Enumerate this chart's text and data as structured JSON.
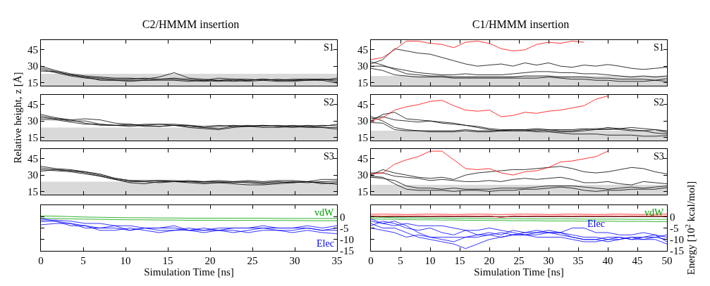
{
  "chart_data": [
    {
      "type": "line",
      "title": "C2/HMMM insertion",
      "annotations": [
        "S1"
      ],
      "tick_labels": "y",
      "xlim": [
        0,
        35
      ],
      "xticks": [
        0,
        5,
        10,
        15,
        20,
        25,
        30,
        35
      ],
      "ylim": [
        12,
        54
      ],
      "yticks": [
        15,
        30,
        45
      ],
      "bands": [
        {
          "axis": "y",
          "from": 12,
          "to": 23,
          "color": "#d9d9d9"
        }
      ],
      "x": [
        0,
        1.75,
        3.5,
        5.25,
        7,
        8.75,
        10.5,
        12.25,
        14,
        15.75,
        17.5,
        19.25,
        21,
        22.75,
        24.5,
        26.25,
        28,
        29.75,
        31.5,
        33.25,
        35
      ],
      "series": [
        {
          "color": "#000000",
          "values": [
            30,
            26,
            23,
            21,
            20,
            19,
            19,
            18,
            20,
            24,
            19,
            18,
            17,
            18,
            17,
            18,
            17,
            18,
            18,
            17,
            19
          ]
        },
        {
          "color": "#000000",
          "values": [
            28.5,
            25,
            22,
            20,
            19,
            18,
            18,
            19,
            18,
            19,
            18,
            17,
            19,
            18,
            18,
            17,
            18,
            17,
            18,
            18,
            17.5
          ]
        },
        {
          "color": "#000000",
          "values": [
            27,
            24,
            21,
            19,
            18,
            17,
            17,
            17,
            18,
            18,
            17,
            16,
            17,
            16,
            17,
            18,
            17,
            17,
            17,
            18,
            16
          ]
        },
        {
          "color": "#000000",
          "values": [
            25.5,
            25,
            22,
            20,
            17,
            17,
            16,
            17,
            17,
            17,
            16,
            17,
            16,
            17,
            16,
            17,
            16,
            16,
            17,
            17,
            14.5
          ]
        }
      ]
    },
    {
      "type": "line",
      "title": "C1/HMMM insertion",
      "annotations": [
        "S1"
      ],
      "tick_labels": "y",
      "xlim": [
        0,
        50
      ],
      "xticks": [
        0,
        5,
        10,
        15,
        20,
        25,
        30,
        35,
        40,
        45,
        50
      ],
      "ylim": [
        12,
        54
      ],
      "yticks": [
        15,
        30,
        45
      ],
      "bands": [
        {
          "axis": "y",
          "from": 12,
          "to": 21,
          "color": "#d9d9d9"
        }
      ],
      "x": [
        0,
        2,
        4,
        6,
        8,
        10,
        12,
        14,
        16,
        18,
        20,
        22,
        24,
        26,
        28,
        30,
        32,
        34,
        36,
        38,
        40,
        42,
        44,
        46,
        48,
        50
      ],
      "series": [
        {
          "color": "#000000",
          "values": [
            32,
            36,
            46,
            44,
            42,
            41,
            38,
            35,
            32,
            30,
            31,
            32,
            30,
            33,
            31,
            33,
            30,
            29,
            31,
            30,
            31.5,
            30,
            28,
            27,
            28,
            29
          ]
        },
        {
          "color": "#000000",
          "values": [
            30,
            30,
            28,
            26,
            24,
            23,
            22,
            22,
            23,
            22,
            22,
            22,
            23,
            24,
            25,
            25,
            24,
            24,
            23,
            23,
            22,
            21,
            20,
            21,
            20,
            21
          ]
        },
        {
          "color": "#000000",
          "values": [
            34,
            31,
            27,
            23,
            22,
            21,
            21,
            20,
            20,
            20,
            20,
            20,
            20,
            21,
            21,
            21,
            20,
            20,
            20,
            19,
            19,
            18,
            18,
            18,
            17,
            18.5
          ]
        },
        {
          "color": "#000000",
          "values": [
            28,
            26,
            22,
            21,
            20,
            20,
            20,
            19,
            19,
            19,
            19,
            19,
            19,
            19,
            19,
            20,
            19,
            18,
            18,
            17,
            17,
            16,
            16,
            16,
            17,
            16
          ]
        },
        {
          "color": "#ff0000",
          "values": [
            36,
            38,
            45,
            53,
            53,
            51,
            50,
            47,
            52,
            53,
            51,
            46,
            44,
            45,
            50,
            52,
            51,
            53,
            52,
            null,
            null,
            null,
            null,
            null,
            null,
            null
          ]
        }
      ]
    },
    {
      "type": "line",
      "ylabel": "Relative height, z [Å]",
      "annotations": [
        "S2"
      ],
      "tick_labels": "y",
      "xlim": [
        0,
        35
      ],
      "xticks": [
        0,
        5,
        10,
        15,
        20,
        25,
        30,
        35
      ],
      "ylim": [
        12,
        54
      ],
      "yticks": [
        15,
        30,
        45
      ],
      "bands": [
        {
          "axis": "y",
          "from": 12,
          "to": 24,
          "color": "#d9d9d9"
        }
      ],
      "x": [
        0,
        1.75,
        3.5,
        5.25,
        7,
        8.75,
        10.5,
        12.25,
        14,
        15.75,
        17.5,
        19.25,
        21,
        22.75,
        24.5,
        26.25,
        28,
        29.75,
        31.5,
        33.25,
        35
      ],
      "series": [
        {
          "color": "#000000",
          "values": [
            36,
            33,
            31,
            32,
            31,
            28,
            27,
            26,
            27,
            27,
            26,
            25,
            26,
            25,
            26,
            25,
            26,
            25,
            26,
            25,
            27
          ]
        },
        {
          "color": "#000000",
          "values": [
            34.5,
            32,
            30,
            30,
            27,
            26,
            26,
            27,
            27,
            26,
            25,
            24,
            23,
            25,
            25,
            26,
            25,
            24,
            25,
            26,
            25.5
          ]
        },
        {
          "color": "#000000",
          "values": [
            33,
            32,
            31,
            28,
            26,
            26,
            27,
            25,
            25,
            26,
            24,
            23,
            22,
            24,
            25,
            24,
            24,
            25,
            24,
            24,
            24
          ]
        },
        {
          "color": "#000000",
          "values": [
            31.5,
            31,
            29,
            27,
            27,
            26,
            25,
            26,
            25,
            26,
            26,
            24,
            25,
            26,
            25,
            26,
            25,
            26,
            25,
            24,
            22.5
          ]
        }
      ]
    },
    {
      "type": "line",
      "annotations": [
        "S2"
      ],
      "tick_labels": "y",
      "xlim": [
        0,
        50
      ],
      "xticks": [
        0,
        5,
        10,
        15,
        20,
        25,
        30,
        35,
        40,
        45,
        50
      ],
      "ylim": [
        12,
        54
      ],
      "yticks": [
        15,
        30,
        45
      ],
      "bands": [
        {
          "axis": "y",
          "from": 12,
          "to": 21,
          "color": "#d9d9d9"
        }
      ],
      "x": [
        0,
        2,
        4,
        6,
        8,
        10,
        12,
        14,
        16,
        18,
        20,
        22,
        24,
        26,
        28,
        30,
        32,
        34,
        36,
        38,
        40,
        42,
        44,
        46,
        48,
        50
      ],
      "series": [
        {
          "color": "#000000",
          "values": [
            30,
            36,
            38,
            32,
            31,
            30,
            29,
            28,
            26,
            24,
            22,
            21,
            22,
            22,
            21,
            22,
            22,
            22,
            23,
            22,
            24,
            23,
            24,
            23,
            22,
            21
          ]
        },
        {
          "color": "#000000",
          "values": [
            32,
            34,
            31,
            30,
            29,
            30,
            28,
            27,
            26,
            25,
            23,
            22,
            22,
            22,
            23,
            22,
            21,
            21,
            22,
            23,
            23,
            22,
            21,
            21,
            22,
            19.5
          ]
        },
        {
          "color": "#000000",
          "values": [
            34,
            30,
            24,
            22,
            21,
            21,
            21,
            21,
            22,
            21,
            21,
            21,
            21,
            21,
            22,
            21,
            20,
            20,
            21,
            22,
            22,
            23,
            22,
            21,
            19,
            18
          ]
        },
        {
          "color": "#000000",
          "values": [
            28.5,
            28,
            22,
            21,
            21,
            20,
            20,
            20,
            21,
            20,
            20,
            21,
            21,
            21,
            20,
            20,
            19,
            18,
            18,
            18,
            17,
            17,
            17,
            16,
            16,
            16.5
          ]
        },
        {
          "color": "#ff0000",
          "values": [
            30,
            33,
            40,
            43,
            45,
            48,
            49,
            44,
            40,
            39,
            40,
            34,
            35,
            38,
            37,
            39,
            40,
            42,
            44,
            50,
            53,
            null,
            null,
            null,
            null,
            null
          ]
        }
      ]
    },
    {
      "type": "line",
      "annotations": [
        "S3"
      ],
      "tick_labels": "y",
      "xlim": [
        0,
        35
      ],
      "xticks": [
        0,
        5,
        10,
        15,
        20,
        25,
        30,
        35
      ],
      "ylim": [
        12,
        54
      ],
      "yticks": [
        15,
        30,
        45
      ],
      "bands": [
        {
          "axis": "y",
          "from": 12,
          "to": 24,
          "color": "#d9d9d9"
        }
      ],
      "x": [
        0,
        1.75,
        3.5,
        5.25,
        7,
        8.75,
        10.5,
        12.25,
        14,
        15.75,
        17.5,
        19.25,
        21,
        22.75,
        24.5,
        26.25,
        28,
        29.75,
        31.5,
        33.25,
        35
      ],
      "series": [
        {
          "color": "#000000",
          "values": [
            38,
            36,
            35,
            33,
            31,
            27,
            25,
            25,
            25,
            25,
            24,
            24,
            25,
            24,
            25,
            24,
            25,
            25,
            24,
            26,
            26
          ]
        },
        {
          "color": "#000000",
          "values": [
            36.5,
            35,
            34,
            32,
            29,
            26,
            24,
            24,
            23,
            24,
            24,
            23,
            23,
            24,
            23,
            22,
            23,
            24,
            23,
            24,
            24.5
          ]
        },
        {
          "color": "#000000",
          "values": [
            35,
            34,
            33,
            31,
            29,
            26,
            23,
            22,
            24,
            24,
            23,
            22,
            23,
            22,
            21,
            21,
            22,
            23,
            24,
            22,
            23
          ]
        },
        {
          "color": "#000000",
          "values": [
            33.5,
            35,
            34,
            33,
            30,
            27,
            25,
            24,
            25,
            24,
            25,
            24,
            24,
            23,
            24,
            23,
            24,
            23,
            24,
            23,
            21.5
          ]
        }
      ]
    },
    {
      "type": "line",
      "annotations": [
        "S3"
      ],
      "tick_labels": "y",
      "xlim": [
        0,
        50
      ],
      "xticks": [
        0,
        5,
        10,
        15,
        20,
        25,
        30,
        35,
        40,
        45,
        50
      ],
      "ylim": [
        12,
        54
      ],
      "yticks": [
        15,
        30,
        45
      ],
      "bands": [
        {
          "axis": "y",
          "from": 12,
          "to": 21,
          "color": "#d9d9d9"
        }
      ],
      "x": [
        0,
        2,
        4,
        6,
        8,
        10,
        12,
        14,
        16,
        18,
        20,
        22,
        24,
        26,
        28,
        30,
        32,
        34,
        36,
        38,
        40,
        42,
        44,
        46,
        48,
        50
      ],
      "series": [
        {
          "color": "#000000",
          "values": [
            30,
            35,
            32,
            30,
            28,
            27,
            28,
            26,
            30,
            32,
            33,
            34,
            35,
            35,
            36,
            37,
            38,
            36,
            33,
            32,
            33,
            35,
            37,
            36,
            33,
            31
          ]
        },
        {
          "color": "#000000",
          "values": [
            32,
            32,
            29,
            28,
            27,
            25,
            26,
            25,
            24,
            24,
            25,
            24,
            26,
            27,
            26,
            27,
            28,
            26,
            23,
            23,
            24,
            22,
            21,
            24,
            23,
            22
          ]
        },
        {
          "color": "#000000",
          "values": [
            28,
            27,
            25,
            20,
            18,
            18,
            17,
            18,
            17,
            17,
            17,
            18,
            18,
            18,
            19,
            20,
            20,
            20,
            19,
            18,
            17,
            18,
            19,
            18,
            19,
            20
          ]
        },
        {
          "color": "#000000",
          "values": [
            29,
            28,
            22,
            17,
            16,
            16,
            16,
            15,
            16,
            16,
            15,
            16,
            16,
            17,
            17,
            18,
            19,
            18,
            16,
            15,
            16,
            16,
            17,
            17,
            17,
            18.5
          ]
        },
        {
          "color": "#ff0000",
          "values": [
            31,
            32,
            40,
            44,
            47,
            52,
            52,
            44,
            36,
            35,
            36,
            32,
            30,
            33,
            34,
            37,
            42,
            43,
            45,
            47,
            52,
            null,
            null,
            null,
            null,
            null
          ]
        }
      ]
    },
    {
      "type": "line",
      "xlabel": "Simulation Time [ns]",
      "xlim": [
        0,
        35
      ],
      "xticks": [
        0,
        5,
        10,
        15,
        20,
        25,
        30,
        35
      ],
      "ylim": [
        -15,
        5
      ],
      "yticks": [
        0,
        -5,
        -10,
        -15
      ],
      "x": [
        0,
        1.75,
        3.5,
        5.25,
        7,
        8.75,
        10.5,
        12.25,
        14,
        15.75,
        17.5,
        19.25,
        21,
        22.75,
        24.5,
        26.25,
        28,
        29.75,
        31.5,
        33.25,
        35
      ],
      "series": [
        {
          "name": "vdW",
          "color": "#00a000",
          "values": [
            0.3,
            0.2,
            0,
            -0.2,
            -0.3,
            -0.4,
            -0.5,
            -0.5,
            -0.6,
            -0.6,
            -0.7,
            -0.7,
            -0.7,
            -0.7,
            -0.7,
            -0.7,
            -0.8,
            -0.8,
            -0.8,
            -0.8,
            -0.8
          ]
        },
        {
          "color": "#00a000",
          "values": [
            -0.7,
            -0.8,
            -1,
            -1.1,
            -1.2,
            -1.3,
            -1.4,
            -1.4,
            -1.5,
            -1.5,
            -1.6,
            -1.6,
            -1.6,
            -1.7,
            -1.6,
            -1.7,
            -1.7,
            -1.7,
            -1.8,
            -1.8,
            -1.8
          ]
        },
        {
          "name": "Elec",
          "color": "#0000ff",
          "values": [
            -0.8,
            -2,
            -3,
            -5,
            -5,
            -4,
            -6,
            -5,
            -5,
            -4,
            -6,
            -5,
            -6,
            -5,
            -5,
            -4,
            -5,
            -5,
            -4,
            -5,
            -4
          ]
        },
        {
          "color": "#0000ff",
          "values": [
            -2.2,
            -2,
            -4,
            -4,
            -6,
            -6,
            -5,
            -6,
            -7,
            -6,
            -6,
            -7,
            -6,
            -6,
            -7,
            -6,
            -6,
            -6,
            -5,
            -6,
            -6
          ]
        },
        {
          "color": "#0000ff",
          "values": [
            -3.6,
            -3,
            -3,
            -4,
            -5,
            -5,
            -6,
            -5,
            -6,
            -6,
            -5,
            -6,
            -6,
            -7,
            -6,
            -5,
            -6,
            -7,
            -6,
            -7,
            -7.5
          ]
        },
        {
          "color": "#0000ff",
          "values": [
            -1.5,
            -1.5,
            -2,
            -3,
            -3,
            -4,
            -4,
            -5,
            -5,
            -5,
            -6,
            -6,
            -5,
            -5,
            -5,
            -5,
            -5,
            -5,
            -5,
            -6,
            -5
          ]
        }
      ]
    },
    {
      "type": "line",
      "xlabel": "Simulation Time [ns]",
      "ylabel": "Energy [10$^{2}$ kcal/mol]",
      "xlim": [
        0,
        50
      ],
      "xticks": [
        0,
        5,
        10,
        15,
        20,
        25,
        30,
        35,
        40,
        45,
        50
      ],
      "ylim": [
        -15,
        5
      ],
      "yticks": [
        0,
        -5,
        -10,
        -15
      ],
      "ref_lines": [
        {
          "axis": "y",
          "value": 0,
          "color": "#000000"
        }
      ],
      "x": [
        0,
        2,
        4,
        6,
        8,
        10,
        12,
        14,
        16,
        18,
        20,
        22,
        24,
        26,
        28,
        30,
        32,
        34,
        36,
        38,
        40,
        42,
        44,
        46,
        48,
        50
      ],
      "series": [
        {
          "name": "vdW",
          "color": "#00a000",
          "values": [
            -0.2,
            -0.3,
            -0.5,
            -0.6,
            -0.6,
            -0.7,
            -0.7,
            -0.8,
            -0.8,
            -0.8,
            -0.9,
            -0.9,
            -0.9,
            -1,
            -1,
            -1,
            -1,
            -1,
            -1.1,
            -1.1,
            -1.1,
            -1.1,
            -1.2,
            -1.2,
            -1.2,
            -1.2
          ]
        },
        {
          "color": "#00a000",
          "values": [
            -1,
            -1.1,
            -1.2,
            -1.3,
            -1.4,
            -1.4,
            -1.5,
            -1.5,
            -1.6,
            -1.6,
            -1.7,
            -1.7,
            -1.8,
            -1.8,
            -1.8,
            -1.9,
            -1.9,
            -1.9,
            -2,
            -2,
            -2,
            -2.1,
            -2.1,
            -2.1,
            -2.2,
            -2.2
          ]
        },
        {
          "name": "Elec",
          "color": "#0000ff",
          "values": [
            -3,
            -5,
            -5,
            -7,
            -9,
            -10,
            -11,
            -12,
            -14,
            -12,
            -10,
            -9,
            -8,
            -7,
            -7,
            -6,
            -7,
            -9,
            -10,
            -10,
            -11,
            -10,
            -9,
            -10,
            -9,
            -10
          ]
        },
        {
          "color": "#0000ff",
          "values": [
            -2,
            -3,
            -2,
            -4,
            -7,
            -9,
            -9,
            -9,
            -9,
            -8,
            -8,
            -9,
            -8,
            -8,
            -8,
            -7,
            -8,
            -9,
            -10,
            -10,
            -9,
            -9,
            -10,
            -9,
            -9,
            -8
          ]
        },
        {
          "color": "#0000ff",
          "values": [
            -4,
            -2,
            -3,
            -5,
            -6,
            -5,
            -7,
            -8,
            -6,
            -6,
            -5,
            -6,
            -7,
            -8,
            -7,
            -7,
            -7,
            -5,
            -5,
            -7,
            -7,
            -8,
            -8,
            -7,
            -8,
            -9
          ]
        },
        {
          "color": "#0000ff",
          "values": [
            -1,
            -3,
            -4,
            -3,
            -4,
            -4,
            -4,
            -5,
            -6,
            -8,
            -7,
            -8,
            -6,
            -7,
            -6,
            -7,
            -7,
            -8,
            -9,
            -9,
            -10,
            -10,
            -9,
            -9,
            -8,
            -11
          ]
        },
        {
          "color": "#0000ff",
          "values": [
            -5,
            -6,
            -7,
            -9,
            -8,
            -9,
            -10,
            -11,
            -9,
            -9,
            -8,
            -7,
            -8,
            -8,
            -9,
            -9,
            -9,
            -10,
            -11,
            -11,
            -10,
            -9,
            -10,
            -10,
            -10,
            -12
          ]
        },
        {
          "color": "#ff0000",
          "values": [
            0.3,
            0.2,
            0.3,
            0.2,
            0.3,
            0.2,
            0.3,
            0.2,
            0.3,
            0.2,
            0.3,
            -0.4,
            0.3,
            0.2,
            0.3,
            0.2,
            0.3,
            0.2,
            0.3,
            0.2,
            0.3,
            0.2,
            0.3,
            0.2,
            0.3,
            0.2
          ]
        },
        {
          "color": "#ff0000",
          "values": [
            1,
            1.1,
            1,
            0.9,
            1,
            1.1,
            1,
            0.9,
            1,
            1.1,
            1,
            0.9,
            1,
            1.1,
            1,
            0.9,
            1,
            1.1,
            1,
            0.9,
            1,
            1.1,
            1,
            0.9,
            1,
            1.1
          ]
        }
      ]
    }
  ]
}
